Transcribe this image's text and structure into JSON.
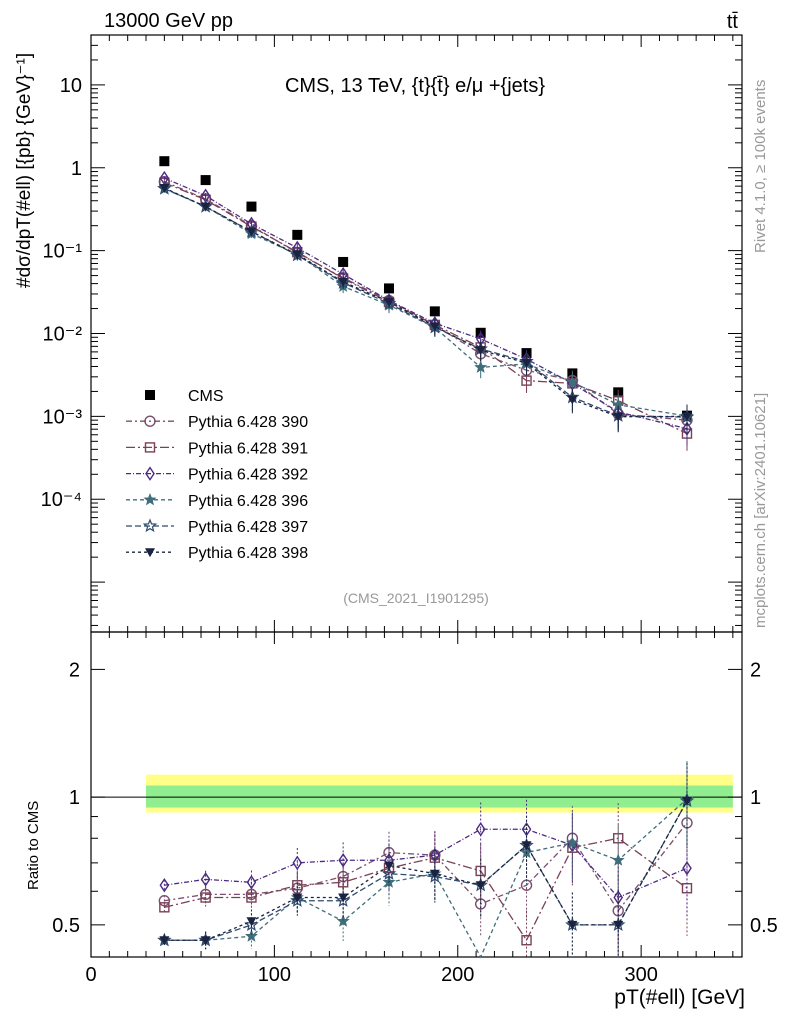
{
  "header": {
    "beam_label": "13000 GeV pp",
    "process_label": "tt̄",
    "title": "CMS, 13 TeV, {t}{t̄} e/μ +{jets}",
    "watermark": "(CMS_2021_I1901295)",
    "side_rivet": "Rivet 4.1.0, ≥ 100k events",
    "side_mcplots": "mcplots.cern.ch [arXiv:2401.10621]"
  },
  "axes": {
    "ylabel_main": "#dσ/dpT(#ell) [{pb} {GeV}⁻¹]",
    "ylabel_ratio": "Ratio to CMS",
    "xlabel": "pT(#ell) [GeV]",
    "main_y_ticks": [
      "10⁻⁴",
      "10⁻³",
      "10⁻²",
      "10⁻¹",
      "1",
      "10"
    ],
    "ratio_y_ticks": [
      "0.5",
      "1",
      "2"
    ],
    "x_ticks": [
      "0",
      "100",
      "200",
      "300"
    ]
  },
  "chart_data": {
    "type": "scatter",
    "x_range": [
      0,
      355
    ],
    "y_range_main": [
      2.5e-06,
      40
    ],
    "y_scale_main": "log",
    "y_range_ratio": [
      0.42,
      2.45
    ],
    "y_scale_ratio": "log",
    "x": [
      40,
      62.5,
      87.5,
      112.5,
      137.5,
      162.5,
      187.5,
      212.5,
      237.5,
      262.5,
      287.5,
      325
    ],
    "band": {
      "x_range": [
        30,
        350
      ],
      "green": [
        0.945,
        1.065
      ],
      "yellow": [
        0.92,
        1.13
      ]
    },
    "series": [
      {
        "name": "CMS",
        "marker": "square-filled",
        "color": "#000000",
        "dash": "",
        "values": [
          1.2,
          0.71,
          0.34,
          0.155,
          0.073,
          0.035,
          0.0185,
          0.0102,
          0.0058,
          0.0033,
          0.00195,
          0.00102
        ],
        "ratio": [
          1,
          1,
          1,
          1,
          1,
          1,
          1,
          1,
          1,
          1,
          1,
          1
        ]
      },
      {
        "name": "Pythia 6.428 390",
        "marker": "circle-open",
        "color": "#7a4f6e",
        "dash": "6,3,2,3",
        "values": [
          0.68,
          0.42,
          0.2,
          0.094,
          0.047,
          0.025,
          0.0126,
          0.0057,
          0.0036,
          0.0027,
          0.00107,
          0.0009
        ],
        "ratio": [
          0.57,
          0.59,
          0.59,
          0.61,
          0.65,
          0.74,
          0.73,
          0.56,
          0.62,
          0.8,
          0.54,
          0.87
        ]
      },
      {
        "name": "Pythia 6.428 391",
        "marker": "square-open",
        "color": "#7a4055",
        "dash": "9,3,2,3",
        "values": [
          0.66,
          0.41,
          0.195,
          0.096,
          0.046,
          0.024,
          0.0127,
          0.0068,
          0.0027,
          0.0025,
          0.00155,
          0.00062
        ],
        "ratio": [
          0.55,
          0.58,
          0.58,
          0.62,
          0.63,
          0.68,
          0.72,
          0.67,
          0.46,
          0.76,
          0.8,
          0.61
        ]
      },
      {
        "name": "Pythia 6.428 392",
        "marker": "diamond-open",
        "color": "#4b2a82",
        "dash": "5,2,1,2",
        "values": [
          0.75,
          0.46,
          0.21,
          0.108,
          0.052,
          0.025,
          0.0133,
          0.0086,
          0.0049,
          0.0025,
          0.00113,
          0.00071
        ],
        "ratio": [
          0.62,
          0.64,
          0.63,
          0.7,
          0.71,
          0.71,
          0.73,
          0.84,
          0.84,
          0.77,
          0.58,
          0.68
        ]
      },
      {
        "name": "Pythia 6.428 396",
        "marker": "star-filled",
        "color": "#3f6e7a",
        "dash": "4,3",
        "values": [
          0.56,
          0.34,
          0.16,
          0.09,
          0.037,
          0.022,
          0.0118,
          0.0039,
          0.0043,
          0.0026,
          0.00138,
          0.00101
        ],
        "ratio": [
          0.46,
          0.46,
          0.47,
          0.58,
          0.51,
          0.63,
          0.66,
          0.38,
          0.74,
          0.78,
          0.71,
          0.99
        ]
      },
      {
        "name": "Pythia 6.428 397",
        "marker": "star-open",
        "color": "#2e4a6e",
        "dash": "6,3",
        "values": [
          0.56,
          0.34,
          0.17,
          0.088,
          0.041,
          0.023,
          0.0119,
          0.0065,
          0.0046,
          0.0017,
          0.00102,
          0.00098
        ],
        "ratio": [
          0.46,
          0.46,
          0.5,
          0.57,
          0.57,
          0.66,
          0.65,
          0.62,
          0.77,
          0.5,
          0.5,
          0.98
        ]
      },
      {
        "name": "Pythia 6.428 398",
        "marker": "triangle-down-filled",
        "color": "#1b2341",
        "dash": "3,3",
        "values": [
          0.57,
          0.34,
          0.17,
          0.09,
          0.042,
          0.024,
          0.0122,
          0.0063,
          0.0044,
          0.0016,
          0.00099,
          0.001
        ],
        "ratio": [
          0.46,
          0.46,
          0.51,
          0.58,
          0.58,
          0.69,
          0.66,
          0.62,
          0.77,
          0.5,
          0.5,
          0.98
        ]
      }
    ]
  }
}
